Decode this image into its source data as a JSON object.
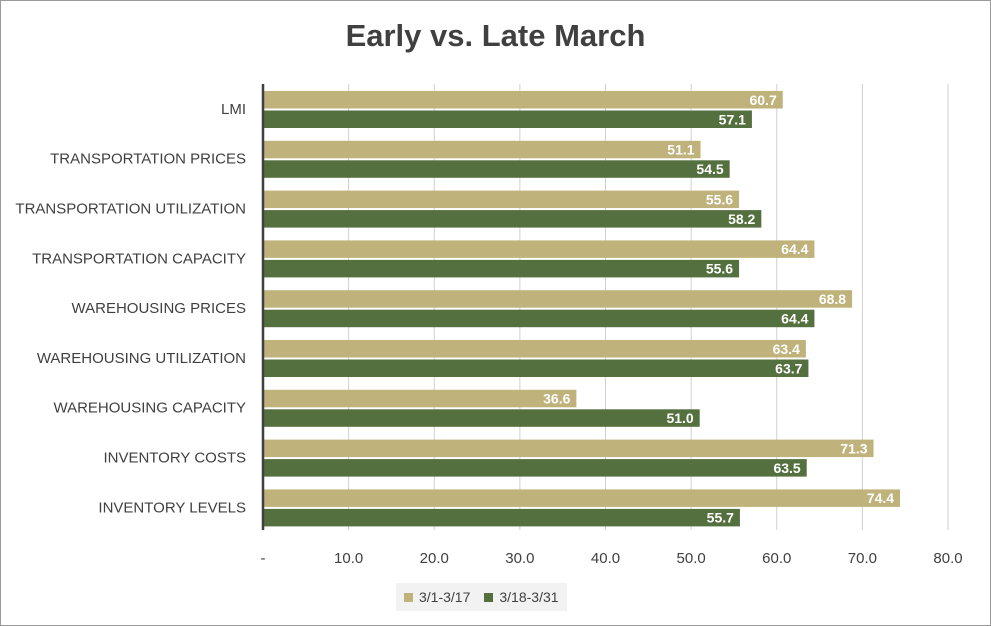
{
  "chart_data": {
    "type": "bar",
    "orientation": "horizontal",
    "title": "Early vs. Late March",
    "xlabel": "",
    "ylabel": "",
    "xlim": [
      0,
      80
    ],
    "x_ticks": [
      0,
      10,
      20,
      30,
      40,
      50,
      60,
      70,
      80
    ],
    "x_tick_labels": [
      "-",
      "10.0",
      "20.0",
      "30.0",
      "40.0",
      "50.0",
      "60.0",
      "70.0",
      "80.0"
    ],
    "grid": true,
    "legend_position": "bottom",
    "categories": [
      "LMI",
      "TRANSPORTATION PRICES",
      "TRANSPORTATION UTILIZATION",
      "TRANSPORTATION CAPACITY",
      "WAREHOUSING PRICES",
      "WAREHOUSING UTILIZATION",
      "WAREHOUSING CAPACITY",
      "INVENTORY COSTS",
      "INVENTORY LEVELS"
    ],
    "series": [
      {
        "name": "3/1-3/17",
        "color": "#c0b27b",
        "values": [
          60.7,
          51.1,
          55.6,
          64.4,
          68.8,
          63.4,
          36.6,
          71.3,
          74.4
        ],
        "labels": [
          "60.7",
          "51.1",
          "55.6",
          "64.4",
          "68.8",
          "63.4",
          "36.6",
          "71.3",
          "74.4"
        ]
      },
      {
        "name": "3/18-3/31",
        "color": "#55703f",
        "values": [
          57.1,
          54.5,
          58.2,
          55.6,
          64.4,
          63.7,
          51.0,
          63.5,
          55.7
        ],
        "labels": [
          "57.1",
          "54.5",
          "58.2",
          "55.6",
          "64.4",
          "63.7",
          "51.0",
          "63.5",
          "55.7"
        ]
      }
    ]
  }
}
